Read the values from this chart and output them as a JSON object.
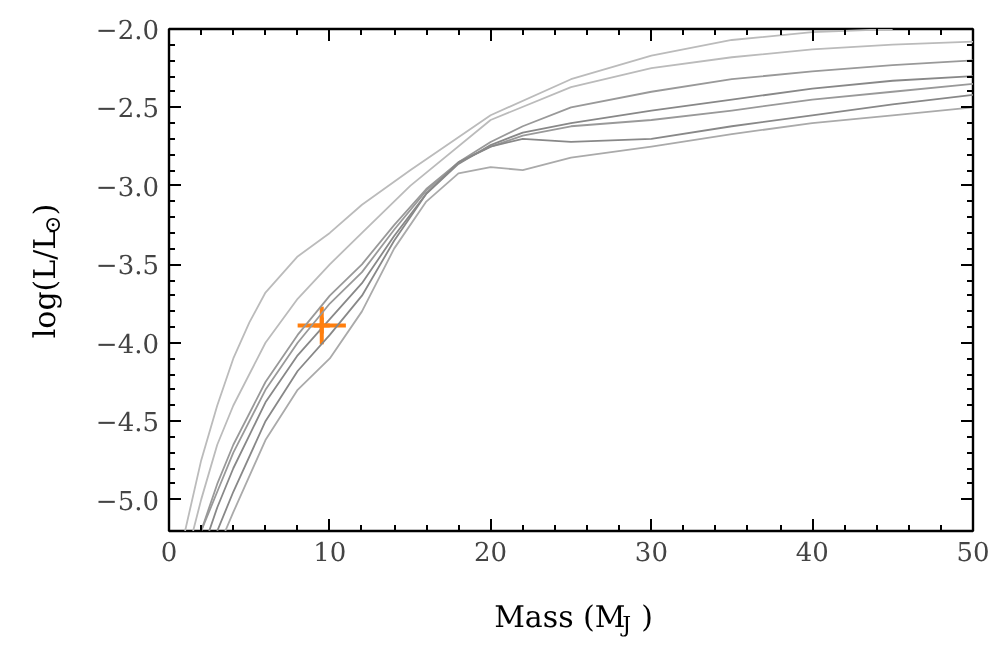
{
  "chart_data": {
    "type": "line",
    "xlabel": "Mass (M$_{J}$)",
    "ylabel": "log(L/L$_{⊙}$)",
    "xlim": [
      0,
      50
    ],
    "ylim": [
      -5.2,
      -2.0
    ],
    "xticks": [
      0,
      10,
      20,
      30,
      40,
      50
    ],
    "yticks": [
      {
        "value": -5.0,
        "label": "−5.0"
      },
      {
        "value": -4.5,
        "label": "−4.5"
      },
      {
        "value": -4.0,
        "label": "−4.0"
      },
      {
        "value": -3.5,
        "label": "−3.5"
      },
      {
        "value": -3.0,
        "label": "−3.0"
      },
      {
        "value": -2.5,
        "label": "−2.5"
      },
      {
        "value": -2.0,
        "label": "−2.0"
      }
    ],
    "grid": false,
    "marker": "none",
    "line_style": "solid",
    "series": [
      {
        "color": "#bbbbbb",
        "x": [
          1,
          2,
          3,
          4,
          5,
          6,
          8,
          10,
          12,
          15,
          20,
          25,
          30,
          35,
          40,
          45
        ],
        "values": [
          -5.2,
          -4.75,
          -4.4,
          -4.1,
          -3.87,
          -3.68,
          -3.45,
          -3.3,
          -3.12,
          -2.9,
          -2.55,
          -2.32,
          -2.17,
          -2.07,
          -2.02,
          -2.0
        ]
      },
      {
        "color": "#bbbbbb",
        "x": [
          1.5,
          2,
          3,
          4,
          6,
          8,
          10,
          12,
          15,
          20,
          25,
          30,
          35,
          40,
          45,
          50
        ],
        "values": [
          -5.2,
          -5.0,
          -4.65,
          -4.4,
          -4.0,
          -3.72,
          -3.5,
          -3.3,
          -3.0,
          -2.58,
          -2.37,
          -2.25,
          -2.18,
          -2.13,
          -2.1,
          -2.08
        ]
      },
      {
        "color": "#999999",
        "x": [
          2,
          3,
          4,
          6,
          8,
          10,
          12,
          14,
          16,
          18,
          20,
          22,
          25,
          30,
          35,
          40,
          45,
          50
        ],
        "values": [
          -5.2,
          -4.9,
          -4.65,
          -4.25,
          -3.95,
          -3.7,
          -3.5,
          -3.25,
          -3.02,
          -2.85,
          -2.72,
          -2.62,
          -2.5,
          -2.4,
          -2.32,
          -2.27,
          -2.23,
          -2.2
        ]
      },
      {
        "color": "#888888",
        "x": [
          2.5,
          3,
          4,
          6,
          8,
          10,
          12,
          14,
          16,
          18,
          20,
          22,
          25,
          30,
          35,
          40,
          45,
          50
        ],
        "values": [
          -5.2,
          -5.05,
          -4.8,
          -4.38,
          -4.08,
          -3.85,
          -3.62,
          -3.32,
          -3.05,
          -2.86,
          -2.74,
          -2.66,
          -2.6,
          -2.52,
          -2.45,
          -2.38,
          -2.33,
          -2.3
        ]
      },
      {
        "color": "#999999",
        "x": [
          2,
          3,
          4,
          6,
          8,
          10,
          12,
          14,
          16,
          18,
          20,
          22,
          25,
          30,
          35,
          40,
          45,
          50
        ],
        "values": [
          -5.2,
          -4.95,
          -4.7,
          -4.3,
          -4.0,
          -3.75,
          -3.55,
          -3.28,
          -3.03,
          -2.85,
          -2.75,
          -2.68,
          -2.62,
          -2.58,
          -2.52,
          -2.45,
          -2.4,
          -2.35
        ]
      },
      {
        "color": "#888888",
        "x": [
          3,
          4,
          6,
          8,
          10,
          12,
          14,
          16,
          18,
          20,
          22,
          25,
          30,
          35,
          40,
          45,
          50
        ],
        "values": [
          -5.2,
          -4.95,
          -4.5,
          -4.18,
          -3.95,
          -3.7,
          -3.35,
          -3.05,
          -2.85,
          -2.75,
          -2.7,
          -2.72,
          -2.7,
          -2.62,
          -2.55,
          -2.48,
          -2.42
        ]
      },
      {
        "color": "#aaaaaa",
        "x": [
          3.5,
          4,
          6,
          8,
          10,
          12,
          14,
          16,
          18,
          20,
          22,
          25,
          30,
          35,
          40,
          45,
          50
        ],
        "values": [
          -5.2,
          -5.08,
          -4.62,
          -4.3,
          -4.1,
          -3.8,
          -3.4,
          -3.1,
          -2.92,
          -2.88,
          -2.9,
          -2.82,
          -2.75,
          -2.67,
          -2.6,
          -2.55,
          -2.5
        ]
      },
      {
        "type": "scatter",
        "marker": "cross",
        "color": "#ff7f0e",
        "x": [
          9.5
        ],
        "values": [
          -3.89
        ],
        "xerrors": [
          1.5
        ],
        "errors": [
          0.12
        ]
      }
    ]
  }
}
